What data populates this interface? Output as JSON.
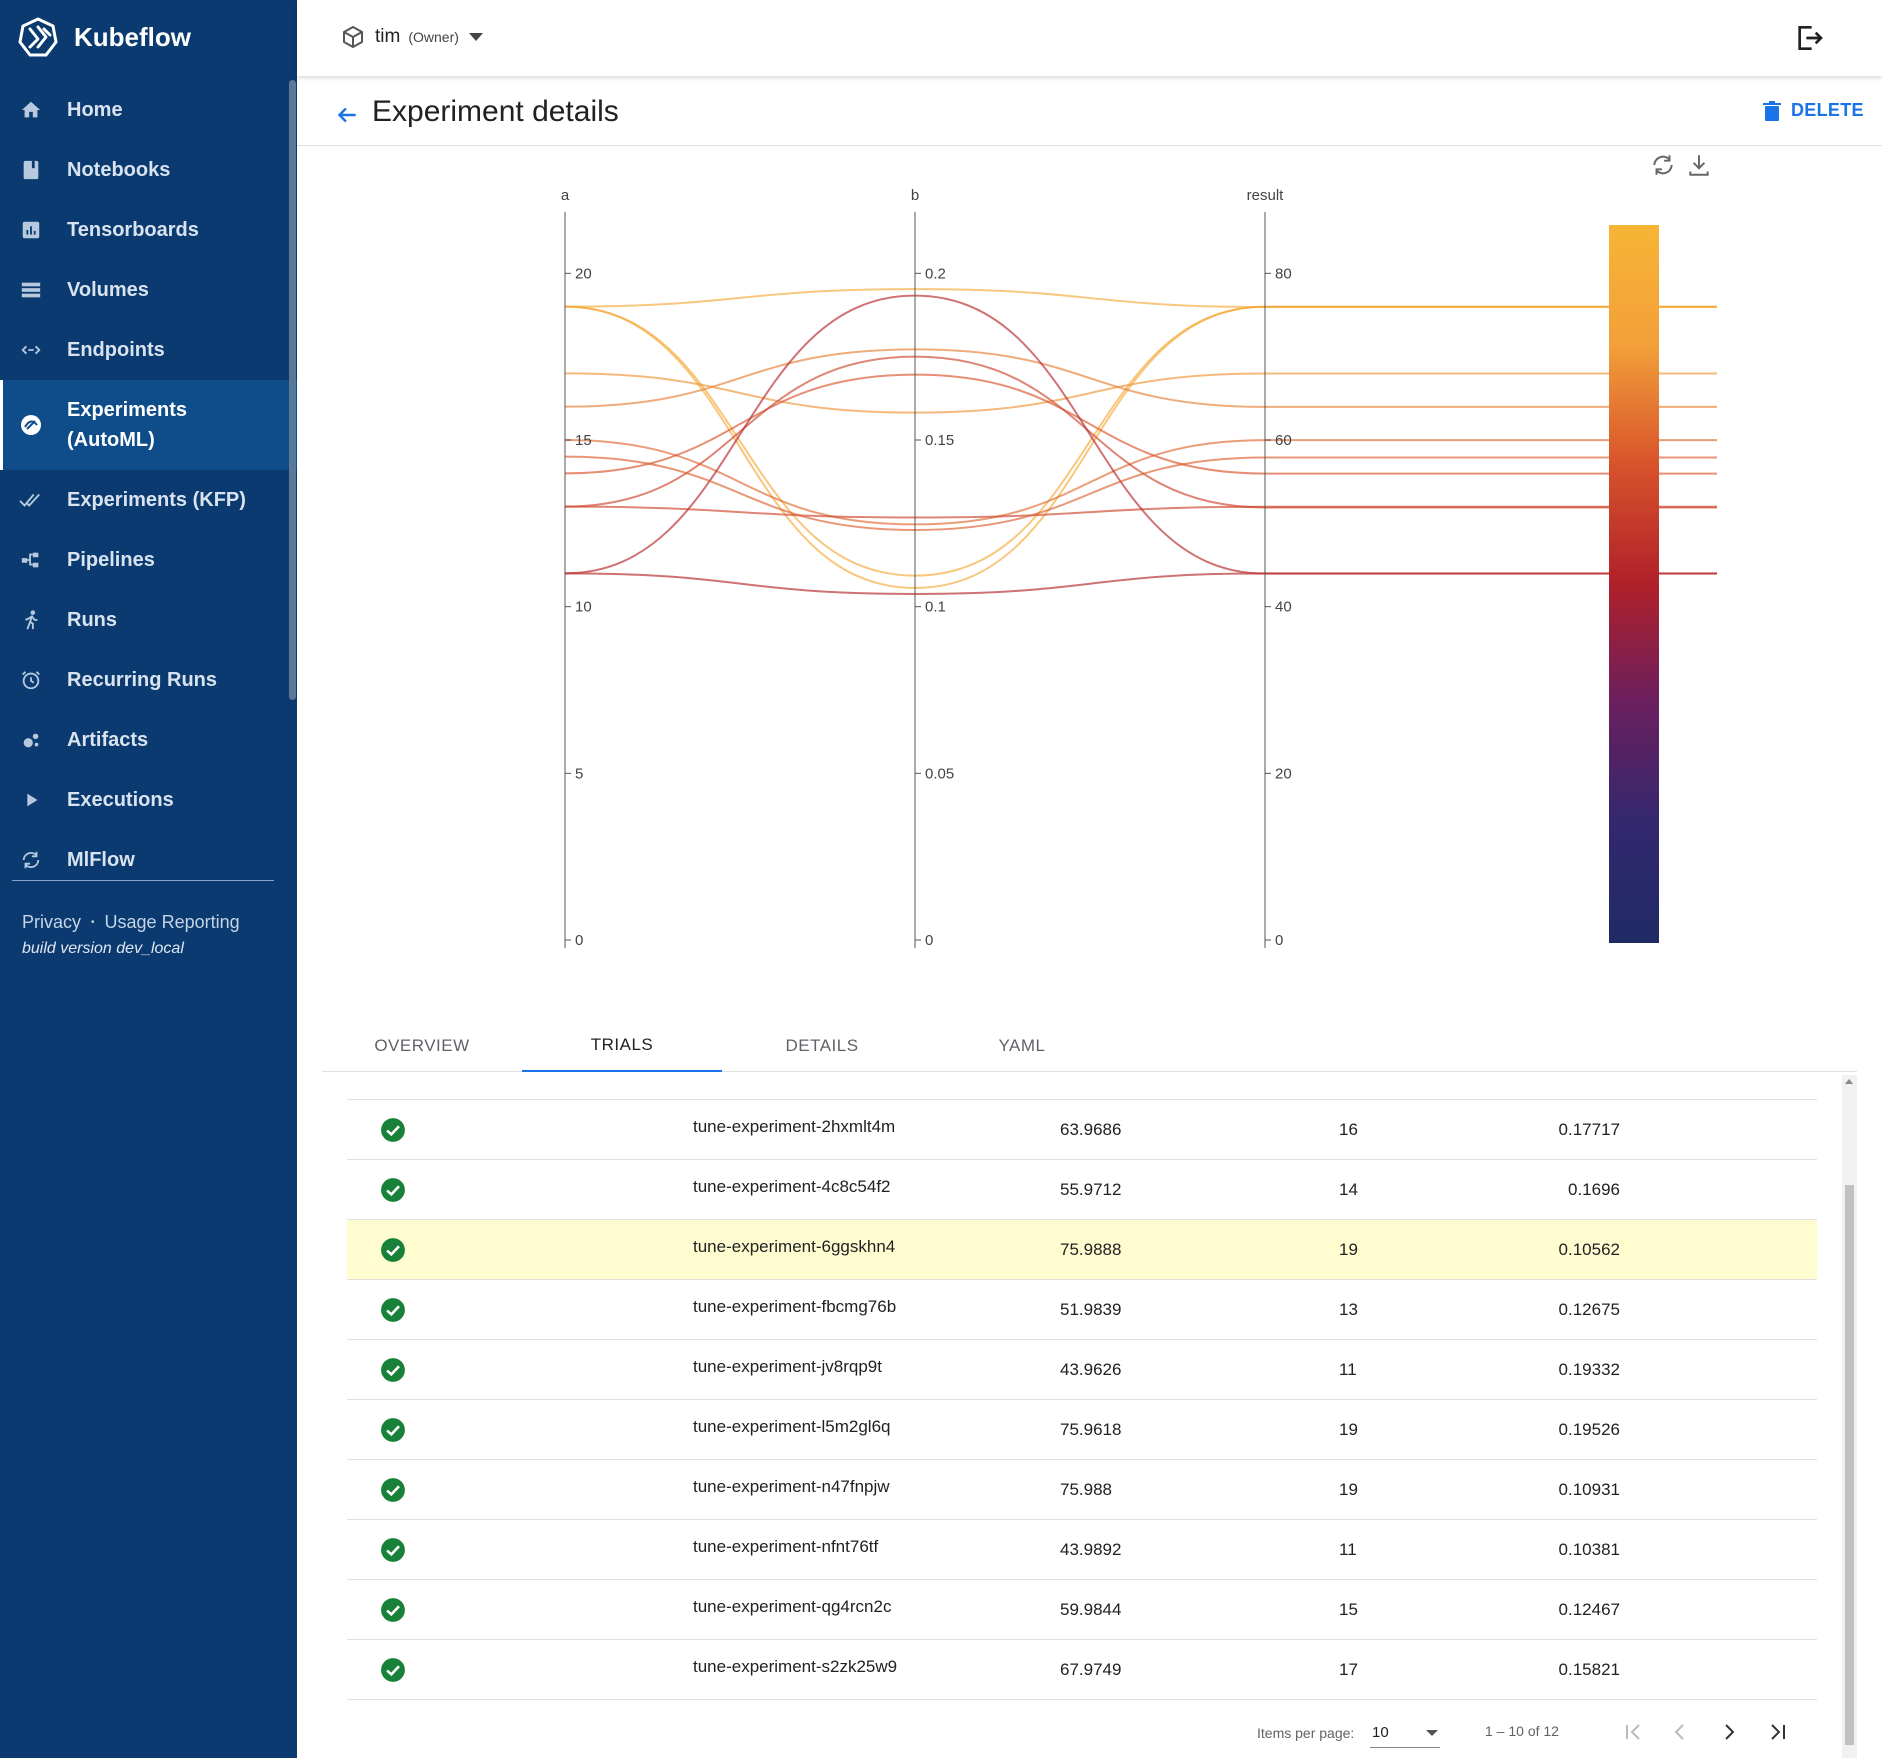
{
  "app": {
    "brand": "Kubeflow",
    "namespace": "tim",
    "namespace_role": "(Owner)"
  },
  "sidebar": {
    "items": [
      {
        "label": "Home",
        "icon": "home-icon"
      },
      {
        "label": "Notebooks",
        "icon": "notebook-icon"
      },
      {
        "label": "Tensorboards",
        "icon": "chart-icon"
      },
      {
        "label": "Volumes",
        "icon": "storage-icon"
      },
      {
        "label": "Endpoints",
        "icon": "code-arrows-icon"
      },
      {
        "label": "Experiments (AutoML)",
        "icon": "experiments-automl-icon",
        "active": true
      },
      {
        "label": "Experiments (KFP)",
        "icon": "double-check-icon"
      },
      {
        "label": "Pipelines",
        "icon": "pipeline-icon"
      },
      {
        "label": "Runs",
        "icon": "runner-icon"
      },
      {
        "label": "Recurring Runs",
        "icon": "alarm-icon"
      },
      {
        "label": "Artifacts",
        "icon": "bubbles-icon"
      },
      {
        "label": "Executions",
        "icon": "play-icon"
      },
      {
        "label": "MlFlow",
        "icon": "sync-icon"
      }
    ],
    "footer": {
      "privacy": "Privacy",
      "separator": "•",
      "usage": "Usage Reporting",
      "build": "build version dev_local"
    }
  },
  "header": {
    "title": "Experiment details",
    "delete_label": "DELETE"
  },
  "chart_data": {
    "type": "parallel-coordinates",
    "dimensions": [
      {
        "label": "a",
        "range": [
          0,
          21
        ],
        "ticks": [
          0,
          5,
          10,
          15,
          20
        ]
      },
      {
        "label": "b",
        "range": [
          0,
          0.21
        ],
        "ticks": [
          0,
          0.05,
          0.1,
          0.15,
          0.2
        ]
      },
      {
        "label": "result",
        "range": [
          0,
          84
        ],
        "ticks": [
          0,
          20,
          40,
          60,
          80
        ]
      }
    ],
    "colorscale": [
      "#1f2a64",
      "#33286e",
      "#6a1f5e",
      "#b0202a",
      "#d8532b",
      "#f2a03a",
      "#f7b534"
    ],
    "lines": [
      {
        "a": 19,
        "b": 0.19526,
        "result": 75.9618
      },
      {
        "a": 19,
        "b": 0.10931,
        "result": 75.988
      },
      {
        "a": 19,
        "b": 0.10562,
        "result": 75.9888
      },
      {
        "a": 17,
        "b": 0.15821,
        "result": 67.9749
      },
      {
        "a": 16,
        "b": 0.17717,
        "result": 63.9686
      },
      {
        "a": 15,
        "b": 0.12467,
        "result": 59.9844
      },
      {
        "a": 14,
        "b": 0.1696,
        "result": 55.9712
      },
      {
        "a": 13,
        "b": 0.12675,
        "result": 51.9839
      },
      {
        "a": 13,
        "b": 0.175,
        "result": 51.9
      },
      {
        "a": 11,
        "b": 0.19332,
        "result": 43.9626
      },
      {
        "a": 11,
        "b": 0.10381,
        "result": 43.9892
      },
      {
        "a": 14.5,
        "b": 0.123,
        "result": 57.9
      }
    ]
  },
  "tabs": [
    {
      "label": "OVERVIEW"
    },
    {
      "label": "TRIALS",
      "active": true
    },
    {
      "label": "DETAILS"
    },
    {
      "label": "YAML"
    }
  ],
  "trials": [
    {
      "name": "tune-experiment-2hxmlt4m",
      "result": "63.9686",
      "a": "16",
      "b": "0.17717"
    },
    {
      "name": "tune-experiment-4c8c54f2",
      "result": "55.9712",
      "a": "14",
      "b": "0.1696"
    },
    {
      "name": "tune-experiment-6ggskhn4",
      "result": "75.9888",
      "a": "19",
      "b": "0.10562",
      "highlight": true
    },
    {
      "name": "tune-experiment-fbcmg76b",
      "result": "51.9839",
      "a": "13",
      "b": "0.12675"
    },
    {
      "name": "tune-experiment-jv8rqp9t",
      "result": "43.9626",
      "a": "11",
      "b": "0.19332"
    },
    {
      "name": "tune-experiment-l5m2gl6q",
      "result": "75.9618",
      "a": "19",
      "b": "0.19526"
    },
    {
      "name": "tune-experiment-n47fnpjw",
      "result": "75.988",
      "a": "19",
      "b": "0.10931"
    },
    {
      "name": "tune-experiment-nfnt76tf",
      "result": "43.9892",
      "a": "11",
      "b": "0.10381"
    },
    {
      "name": "tune-experiment-qg4rcn2c",
      "result": "59.9844",
      "a": "15",
      "b": "0.12467"
    },
    {
      "name": "tune-experiment-s2zk25w9",
      "result": "67.9749",
      "a": "17",
      "b": "0.15821"
    }
  ],
  "paginator": {
    "items_per_page_label": "Items per page:",
    "items_per_page": "10",
    "range": "1 – 10 of 12"
  },
  "colors": {
    "sidebar_bg": "#0a3a6f",
    "accent": "#1a73e8",
    "success": "#188038",
    "highlight_row": "#fffccf"
  }
}
